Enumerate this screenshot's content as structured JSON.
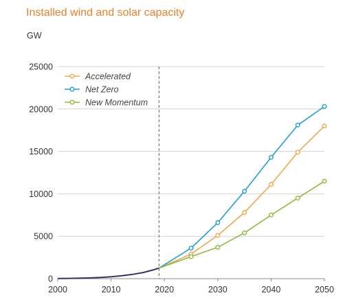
{
  "chart_data": {
    "type": "line",
    "title": "Installed wind and solar capacity",
    "unit": "GW",
    "xlim": [
      2000,
      2050
    ],
    "ylim": [
      0,
      25000
    ],
    "x_ticks": [
      "2000",
      "2010",
      "2020",
      "2030",
      "2040",
      "2050"
    ],
    "y_ticks": [
      "0",
      "5000",
      "10000",
      "15000",
      "20000",
      "25000"
    ],
    "grid": "horizontal",
    "legend_position": "top-left",
    "reference_line_x": 2019,
    "history": {
      "color": "#3b2f6b",
      "x": [
        2000,
        2002,
        2004,
        2006,
        2008,
        2010,
        2012,
        2014,
        2016,
        2018,
        2019
      ],
      "y": [
        20,
        35,
        55,
        85,
        140,
        220,
        340,
        500,
        720,
        1050,
        1250
      ]
    },
    "series": [
      {
        "name": "Accelerated",
        "color": "#f0a84a",
        "x": [
          2019,
          2025,
          2030,
          2035,
          2040,
          2045,
          2050
        ],
        "y": [
          1250,
          2900,
          5100,
          7800,
          11100,
          14900,
          18000
        ]
      },
      {
        "name": "Net Zero",
        "color": "#1ea0d6",
        "x": [
          2019,
          2025,
          2030,
          2035,
          2040,
          2045,
          2050
        ],
        "y": [
          1250,
          3600,
          6600,
          10300,
          14300,
          18100,
          20300
        ]
      },
      {
        "name": "New Momentum",
        "color": "#8dbb3c",
        "x": [
          2019,
          2025,
          2030,
          2035,
          2040,
          2045,
          2050
        ],
        "y": [
          1250,
          2600,
          3700,
          5400,
          7500,
          9500,
          11500
        ]
      }
    ]
  }
}
